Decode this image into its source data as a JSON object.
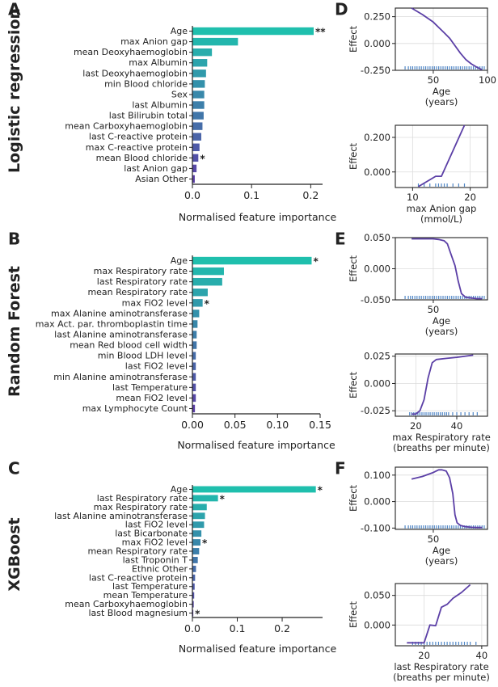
{
  "colors": {
    "bar_top": "#1fbfad",
    "bar_bottom": "#5b3fa6",
    "pdp_line": "#5b3fa6",
    "rug": "#4f86c6",
    "axis": "#222222",
    "grid": "#dcdcdc",
    "text": "#222222"
  },
  "chart_data": [
    {
      "id": "A",
      "type": "bar",
      "orientation": "horizontal",
      "panel_label": "A",
      "model_label": "Logistic regression",
      "xlabel": "Normalised feature importance",
      "xlim": [
        0,
        0.22
      ],
      "xticks": [
        0.0,
        0.1,
        0.2
      ],
      "xtick_labels": [
        "0.0",
        "0.1",
        "0.2"
      ],
      "categories": [
        "Age",
        "max Anion gap",
        "mean Deoxyhaemoglobin",
        "max Albumin",
        "last Deoxyhaemoglobin",
        "min Blood chloride",
        "Sex",
        "last Albumin",
        "last Bilirubin total",
        "mean Carboxyhaemoglobin",
        "last C-reactive protein",
        "max C-reactive protein",
        "mean Blood chloride",
        "last Anion gap",
        "Asian Other"
      ],
      "values": [
        0.205,
        0.077,
        0.033,
        0.025,
        0.023,
        0.021,
        0.02,
        0.02,
        0.019,
        0.017,
        0.015,
        0.012,
        0.01,
        0.007,
        0.004
      ],
      "significance": [
        "**",
        "",
        "",
        "",
        "",
        "",
        "",
        "",
        "",
        "",
        "",
        "",
        "*",
        "",
        ""
      ]
    },
    {
      "id": "B",
      "type": "bar",
      "orientation": "horizontal",
      "panel_label": "B",
      "model_label": "Random Forest",
      "xlabel": "Normalised feature importance",
      "xlim": [
        0,
        0.15
      ],
      "xticks": [
        0.0,
        0.05,
        0.1,
        0.15
      ],
      "xtick_labels": [
        "0.00",
        "0.05",
        "0.10",
        "0.15"
      ],
      "categories": [
        "Age",
        "max Respiratory rate",
        "last Respiratory rate",
        "mean Respiratory rate",
        "max FiO2 level",
        "max Alanine aminotransferase",
        "max Act. par. thromboplastin time",
        "last Alanine aminotransferase",
        "mean Red blood cell width",
        "min Blood LDH level",
        "last FiO2 level",
        "min Alanine aminotransferase",
        "last Temperature",
        "mean FiO2 level",
        "max Lymphocyte Count"
      ],
      "values": [
        0.14,
        0.037,
        0.035,
        0.018,
        0.012,
        0.008,
        0.006,
        0.005,
        0.005,
        0.004,
        0.004,
        0.004,
        0.004,
        0.004,
        0.003
      ],
      "significance": [
        "*",
        "",
        "",
        "",
        "*",
        "",
        "",
        "",
        "",
        "",
        "",
        "",
        "",
        "",
        ""
      ]
    },
    {
      "id": "C",
      "type": "bar",
      "orientation": "horizontal",
      "panel_label": "C",
      "model_label": "XGBoost",
      "xlabel": "Normalised feature importance",
      "xlim": [
        0,
        0.29
      ],
      "xticks": [
        0.0,
        0.1,
        0.2
      ],
      "xtick_labels": [
        "0.0",
        "0.1",
        "0.2"
      ],
      "categories": [
        "Age",
        "last Respiratory rate",
        "max Respiratory rate",
        "last Alanine aminotransferase",
        "last FiO2 level",
        "last Bicarbonate",
        "max FiO2 level",
        "mean Respiratory rate",
        "last Troponin T",
        "Ethnic Other",
        "last C-reactive protein",
        "last Temperature",
        "mean Temperature",
        "mean Carboxyhaemoglobin",
        "last Blood magnesium"
      ],
      "values": [
        0.275,
        0.057,
        0.032,
        0.028,
        0.026,
        0.02,
        0.018,
        0.015,
        0.012,
        0.008,
        0.006,
        0.005,
        0.004,
        0.003,
        0.002
      ],
      "significance": [
        "*",
        "*",
        "",
        "",
        "",
        "",
        "*",
        "",
        "",
        "",
        "",
        "",
        "",
        "",
        "*"
      ]
    },
    {
      "id": "D1",
      "type": "line",
      "panel_label": "D",
      "ylabel": "Effect",
      "xlabel": "Age",
      "xunit": "(years)",
      "xlim": [
        15,
        100
      ],
      "ylim": [
        -0.25,
        0.33
      ],
      "xticks": [
        50,
        100
      ],
      "yticks": [
        -0.25,
        0.0,
        0.25
      ],
      "ytick_labels": [
        "-0.250",
        "0.000",
        "0.250"
      ],
      "x": [
        30,
        40,
        50,
        55,
        60,
        65,
        70,
        75,
        80,
        85,
        90,
        95
      ],
      "y": [
        0.33,
        0.27,
        0.2,
        0.15,
        0.1,
        0.05,
        -0.02,
        -0.09,
        -0.15,
        -0.19,
        -0.22,
        -0.245
      ],
      "rug": [
        24,
        27,
        29,
        31,
        33,
        35,
        37,
        39,
        41,
        43,
        45,
        47,
        49,
        51,
        53,
        55,
        57,
        59,
        61,
        63,
        65,
        67,
        69,
        71,
        73,
        75,
        77,
        79,
        81,
        83,
        85,
        87,
        89,
        91,
        93,
        95,
        97
      ]
    },
    {
      "id": "D2",
      "type": "line",
      "panel_label": "",
      "ylabel": "Effect",
      "xlabel": "max Anion gap",
      "xunit": "(mmol/L)",
      "xlim": [
        7,
        23
      ],
      "ylim": [
        -0.09,
        0.27
      ],
      "xticks": [
        10,
        20
      ],
      "yticks": [
        0.0,
        0.2
      ],
      "ytick_labels": [
        "0.000",
        "0.200"
      ],
      "x": [
        11,
        14,
        15,
        19
      ],
      "y": [
        -0.085,
        -0.025,
        -0.025,
        0.27
      ],
      "rug": [
        11,
        12,
        13,
        14,
        14.5,
        15,
        15.5,
        16,
        17,
        18,
        19
      ]
    },
    {
      "id": "E1",
      "type": "line",
      "panel_label": "E",
      "ylabel": "Effect",
      "xlabel": "Age",
      "xunit": "(years)",
      "xlim": [
        15,
        100
      ],
      "ylim": [
        -0.05,
        0.05
      ],
      "xticks": [
        50
      ],
      "yticks": [
        -0.05,
        0.0,
        0.05
      ],
      "ytick_labels": [
        "-0.050",
        "0.000",
        "0.050"
      ],
      "x": [
        30,
        40,
        50,
        55,
        60,
        63,
        66,
        70,
        73,
        76,
        80,
        85,
        90,
        95
      ],
      "y": [
        0.048,
        0.048,
        0.048,
        0.047,
        0.045,
        0.04,
        0.025,
        0.005,
        -0.02,
        -0.04,
        -0.046,
        -0.047,
        -0.048,
        -0.048
      ],
      "rug": [
        24,
        27,
        29,
        31,
        33,
        35,
        37,
        39,
        41,
        43,
        45,
        47,
        49,
        51,
        53,
        55,
        57,
        59,
        61,
        63,
        65,
        67,
        69,
        71,
        73,
        75,
        77,
        79,
        81,
        83,
        85,
        87,
        89,
        91,
        93,
        95,
        97
      ]
    },
    {
      "id": "E2",
      "type": "line",
      "panel_label": "",
      "ylabel": "Effect",
      "xlabel": "max Respiratory rate",
      "xunit": "(breaths per minute)",
      "xlim": [
        10,
        55
      ],
      "ylim": [
        -0.03,
        0.027
      ],
      "xticks": [
        20,
        40
      ],
      "yticks": [
        -0.025,
        0.0,
        0.025
      ],
      "ytick_labels": [
        "-0.025",
        "0.000",
        "0.025"
      ],
      "x": [
        18,
        20,
        22,
        24,
        26,
        28,
        30,
        35,
        40,
        48
      ],
      "y": [
        -0.028,
        -0.028,
        -0.025,
        -0.015,
        0.005,
        0.019,
        0.022,
        0.023,
        0.024,
        0.026
      ],
      "rug": [
        17,
        18,
        19,
        20,
        21,
        22,
        23,
        24,
        25,
        26,
        27,
        28,
        29,
        30,
        31,
        32,
        33,
        34,
        35,
        36,
        38,
        40,
        42,
        44,
        46,
        48,
        50
      ]
    },
    {
      "id": "F1",
      "type": "line",
      "panel_label": "F",
      "ylabel": "Effect",
      "xlabel": "Age",
      "xunit": "(years)",
      "xlim": [
        15,
        100
      ],
      "ylim": [
        -0.105,
        0.13
      ],
      "xticks": [
        50
      ],
      "yticks": [
        -0.1,
        0.0,
        0.1
      ],
      "ytick_labels": [
        "-0.100",
        "0.000",
        "0.100"
      ],
      "x": [
        30,
        40,
        50,
        55,
        58,
        62,
        65,
        68,
        70,
        72,
        75,
        80,
        85,
        90,
        95
      ],
      "y": [
        0.085,
        0.095,
        0.11,
        0.12,
        0.12,
        0.115,
        0.09,
        0.03,
        -0.05,
        -0.08,
        -0.09,
        -0.095,
        -0.097,
        -0.098,
        -0.098
      ],
      "rug": [
        24,
        27,
        29,
        31,
        33,
        35,
        37,
        39,
        41,
        43,
        45,
        47,
        49,
        51,
        53,
        55,
        57,
        59,
        61,
        63,
        65,
        67,
        69,
        71,
        73,
        75,
        77,
        79,
        81,
        83,
        85,
        87,
        89,
        91,
        93,
        95,
        97
      ]
    },
    {
      "id": "F2",
      "type": "line",
      "panel_label": "",
      "ylabel": "Effect",
      "xlabel": "last Respiratory rate",
      "xunit": "(breaths per minute)",
      "xlim": [
        10,
        42
      ],
      "ylim": [
        -0.035,
        0.07
      ],
      "xticks": [
        20,
        40
      ],
      "yticks": [
        0.0,
        0.05
      ],
      "ytick_labels": [
        "0.000",
        "0.050"
      ],
      "x": [
        14,
        16,
        18,
        20,
        22,
        24,
        26,
        28,
        30,
        33,
        36
      ],
      "y": [
        -0.03,
        -0.03,
        -0.03,
        -0.03,
        0.0,
        -0.001,
        0.03,
        0.035,
        0.045,
        0.055,
        0.068
      ],
      "rug": [
        16,
        17,
        18,
        19,
        20,
        21,
        22,
        23,
        24,
        25,
        26,
        27,
        28,
        29,
        30,
        31,
        32,
        33,
        34,
        35,
        36,
        38
      ]
    }
  ]
}
